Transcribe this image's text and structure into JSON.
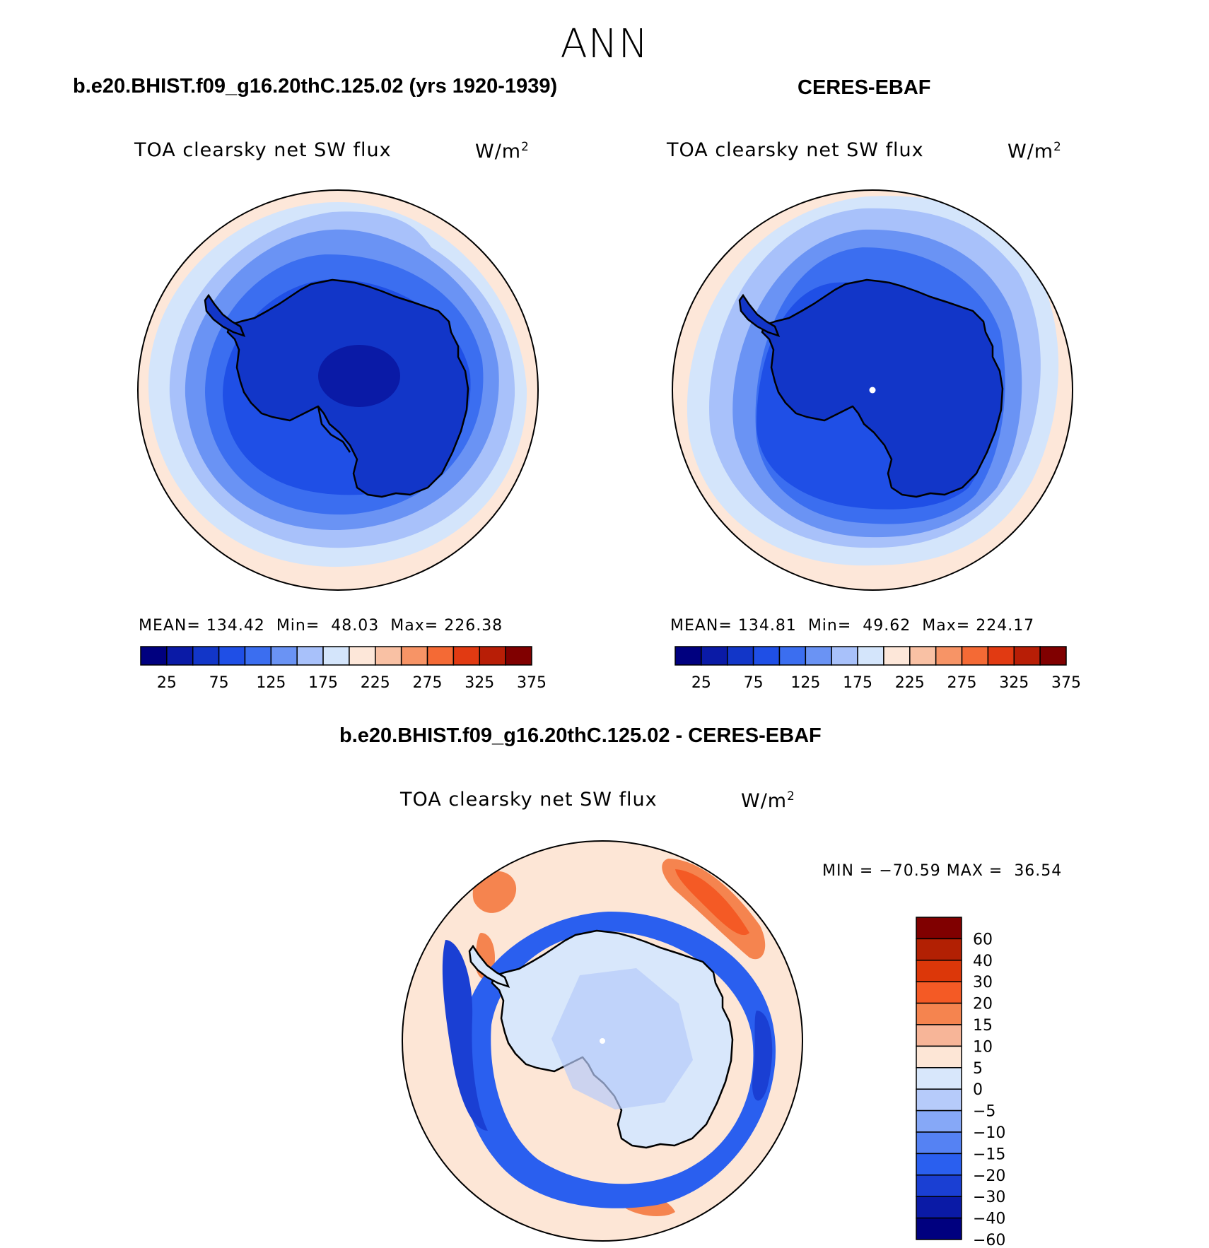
{
  "season": "ANN",
  "colors": {
    "seq": [
      "#00007f",
      "#0a1aa6",
      "#1236c8",
      "#1f4fe6",
      "#3b6ef0",
      "#6a93f4",
      "#a8c1fa",
      "#d4e5fb",
      "#fde7d9",
      "#f9c1a4",
      "#f79466",
      "#f46a35",
      "#e13a12",
      "#b81e06",
      "#800000"
    ],
    "diff": [
      "#00007f",
      "#0a1aa6",
      "#1a3fd3",
      "#2a5fef",
      "#5582f3",
      "#86a8f7",
      "#b6cbfa",
      "#d8e7fb",
      "#fde6d6",
      "#f7b598",
      "#f5844f",
      "#f45a25",
      "#dc3709",
      "#b22003",
      "#800000"
    ]
  },
  "panels": [
    {
      "header": "b.e20.BHIST.f09_g16.20thC.125.02 (yrs 1920-1939)",
      "variable": "TOA clearsky net SW flux",
      "units_base": "W/m",
      "units_exp": "2",
      "stats": {
        "mean_label": "MEAN=",
        "mean": "134.42",
        "min_label": "Min=",
        "min": "48.03",
        "max_label": "Max=",
        "max": "226.38"
      },
      "colorbar_ticks": [
        "25",
        "75",
        "125",
        "175",
        "225",
        "275",
        "325",
        "375"
      ]
    },
    {
      "header": "CERES-EBAF",
      "variable": "TOA clearsky net SW flux",
      "units_base": "W/m",
      "units_exp": "2",
      "stats": {
        "mean_label": "MEAN=",
        "mean": "134.81",
        "min_label": "Min=",
        "min": "49.62",
        "max_label": "Max=",
        "max": "224.17"
      },
      "colorbar_ticks": [
        "25",
        "75",
        "125",
        "175",
        "225",
        "275",
        "325",
        "375"
      ]
    }
  ],
  "difference": {
    "header": "b.e20.BHIST.f09_g16.20thC.125.02 - CERES-EBAF",
    "variable": "TOA clearsky net SW flux",
    "units_base": "W/m",
    "units_exp": "2",
    "min_label": "MIN =",
    "min": "−70.59",
    "max_label": "MAX =",
    "max": "36.54",
    "colorbar_labels": [
      "60",
      "40",
      "30",
      "20",
      "15",
      "10",
      "5",
      "0",
      "−5",
      "−10",
      "−15",
      "−20",
      "−30",
      "−40",
      "−60"
    ]
  }
}
